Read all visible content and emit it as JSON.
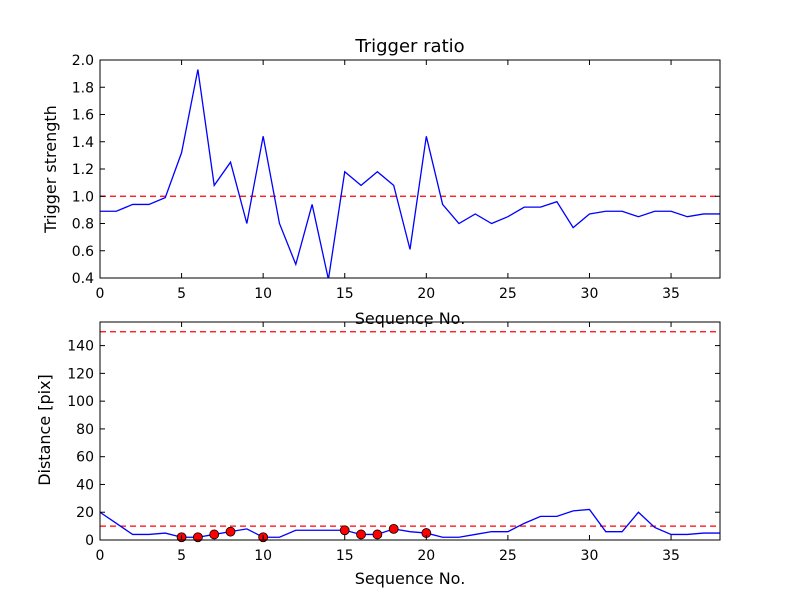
{
  "chart_data": [
    {
      "type": "line",
      "title": "Trigger ratio",
      "xlabel": "Sequence No.",
      "ylabel": "Trigger strength",
      "xlim": [
        0,
        38
      ],
      "ylim": [
        0.4,
        2.0
      ],
      "xticks": [
        0,
        5,
        10,
        15,
        20,
        25,
        30,
        35
      ],
      "yticks": [
        0.4,
        0.6,
        0.8,
        1.0,
        1.2,
        1.4,
        1.6,
        1.8,
        2.0
      ],
      "ytick_labels": [
        "0.4",
        "0.6",
        "0.8",
        "1.0",
        "1.2",
        "1.4",
        "1.6",
        "1.8",
        "2.0"
      ],
      "grid": false,
      "series": [
        {
          "x": [
            0,
            1,
            2,
            3,
            4,
            5,
            6,
            7,
            8,
            9,
            10,
            11,
            12,
            13,
            14,
            15,
            16,
            17,
            18,
            19,
            20,
            21,
            22,
            23,
            24,
            25,
            26,
            27,
            28,
            29,
            30,
            31,
            32,
            33,
            34,
            35,
            36,
            37,
            38
          ],
          "values": [
            0.89,
            0.89,
            0.94,
            0.94,
            0.99,
            1.32,
            1.93,
            1.08,
            1.25,
            0.8,
            1.44,
            0.8,
            0.5,
            0.94,
            0.39,
            1.18,
            1.08,
            1.18,
            1.08,
            0.61,
            1.44,
            0.94,
            0.8,
            0.87,
            0.8,
            0.85,
            0.92,
            0.92,
            0.96,
            0.77,
            0.87,
            0.89,
            0.89,
            0.85,
            0.89,
            0.89,
            0.85,
            0.87,
            0.87
          ],
          "color": "#0000ff",
          "style": "solid"
        }
      ],
      "hlines": [
        {
          "y": 1.0,
          "color": "#ff0000",
          "style": "dashed"
        }
      ]
    },
    {
      "type": "line",
      "title": "",
      "xlabel": "Sequence No.",
      "ylabel": "Distance [pix]",
      "xlim": [
        0,
        38
      ],
      "ylim": [
        0,
        157
      ],
      "xticks": [
        0,
        5,
        10,
        15,
        20,
        25,
        30,
        35
      ],
      "yticks": [
        0,
        20,
        40,
        60,
        80,
        100,
        120,
        140
      ],
      "grid": false,
      "series": [
        {
          "x": [
            0,
            1,
            2,
            3,
            4,
            5,
            6,
            7,
            8,
            9,
            10,
            11,
            12,
            13,
            14,
            15,
            16,
            17,
            18,
            19,
            20,
            21,
            22,
            23,
            24,
            25,
            26,
            27,
            28,
            29,
            30,
            31,
            32,
            33,
            34,
            35,
            36,
            37,
            38
          ],
          "values": [
            20,
            12,
            4,
            4,
            5,
            2,
            2,
            4,
            6,
            8,
            2,
            2,
            7,
            7,
            7,
            7,
            4,
            4,
            8,
            6,
            5,
            2,
            2,
            4,
            6,
            6,
            12,
            17,
            17,
            21,
            22,
            6,
            6,
            20,
            9,
            4,
            4,
            5,
            5
          ],
          "color": "#0000ff",
          "style": "solid"
        }
      ],
      "markers": {
        "x": [
          5,
          6,
          7,
          8,
          10,
          15,
          16,
          17,
          18,
          20
        ],
        "values": [
          2,
          2,
          4,
          6,
          2,
          7,
          4,
          4,
          8,
          5
        ],
        "color": "#ff0000",
        "edgecolor": "#000000"
      },
      "hlines": [
        {
          "y": 150,
          "color": "#ff0000",
          "style": "dashed"
        },
        {
          "y": 10,
          "color": "#ff0000",
          "style": "dashed"
        }
      ]
    }
  ]
}
